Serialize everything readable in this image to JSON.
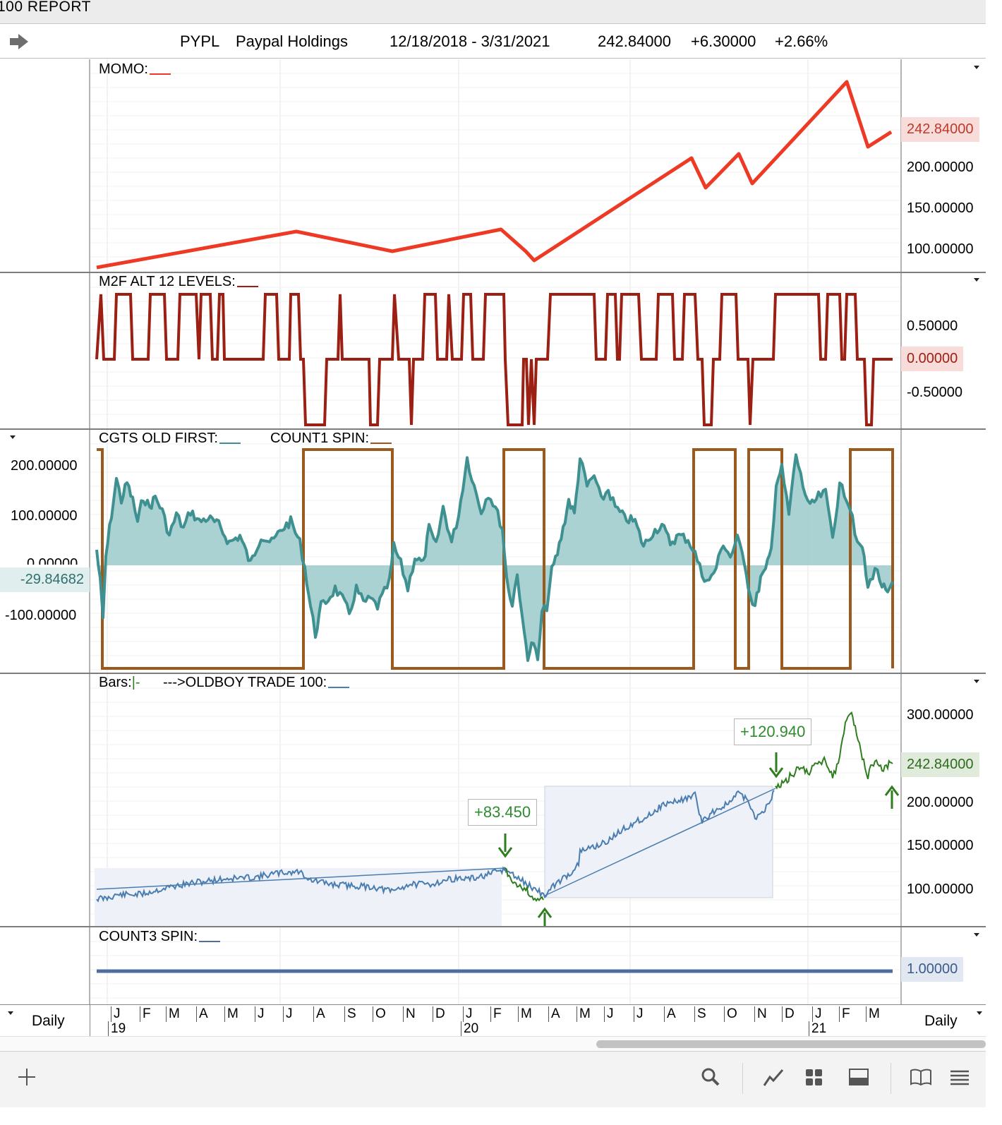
{
  "window": {
    "title": "100  REPORT"
  },
  "header": {
    "symbol": "PYPL",
    "name": "Paypal Holdings",
    "date_range": "12/18/2018 - 3/31/2021",
    "last": "242.84000",
    "change": "+6.30000",
    "change_pct": "+2.66%"
  },
  "panels": {
    "momo": {
      "title": "MOMO:",
      "ticks": [
        "200.00000",
        "150.00000",
        "100.00000"
      ],
      "last_tag": "242.84000"
    },
    "m2f": {
      "title": "M2F ALT 12 LEVELS:",
      "ticks": [
        "0.50000",
        "-0.50000"
      ],
      "last_tag": "0.00000"
    },
    "cgts": {
      "title": "CGTS OLD FIRST:",
      "title2": "COUNT1 SPIN:",
      "ticks": [
        "200.00000",
        "100.00000",
        "0.00000",
        "-100.00000"
      ],
      "last_tag": "-29.84682"
    },
    "bars": {
      "title": "Bars:",
      "title_mark": "|-",
      "title2": "--->OLDBOY TRADE 100:",
      "ticks": [
        "300.00000",
        "200.00000",
        "150.00000",
        "100.00000"
      ],
      "last_tag": "242.84000",
      "trade1": "+83.450",
      "trade2": "+120.940"
    },
    "count3": {
      "title": "COUNT3 SPIN:",
      "last_tag": "1.00000"
    }
  },
  "time_axis": {
    "months": [
      "J",
      "F",
      "M",
      "A",
      "M",
      "J",
      "J",
      "A",
      "S",
      "O",
      "N",
      "D",
      "J",
      "F",
      "M",
      "A",
      "M",
      "J",
      "J",
      "A",
      "S",
      "O",
      "N",
      "D",
      "J",
      "F",
      "M"
    ],
    "years": [
      "19",
      "20",
      "21"
    ],
    "period_left": "Daily",
    "period_right": "Daily"
  },
  "toolbar": {
    "icons": [
      "add-icon",
      "search-icon",
      "chart-line-icon",
      "grid-icon",
      "panel-icon",
      "book-icon",
      "list-icon"
    ]
  },
  "colors": {
    "momo": "#ee3a25",
    "m2f": "#9b1f12",
    "cgts": "#3f9191",
    "cgts_fill": "#9ccaca",
    "count1": "#9a5a1d",
    "bars_blue": "#4a7db0",
    "bars_green": "#2e7d1e",
    "count3": "#4f6d9e",
    "tag_red_bg": "#f7dcd9",
    "tag_green_bg": "#e0ebdb",
    "tag_blue_bg": "#e2e8f1",
    "tag_teal_bg": "#e0efee"
  }
}
